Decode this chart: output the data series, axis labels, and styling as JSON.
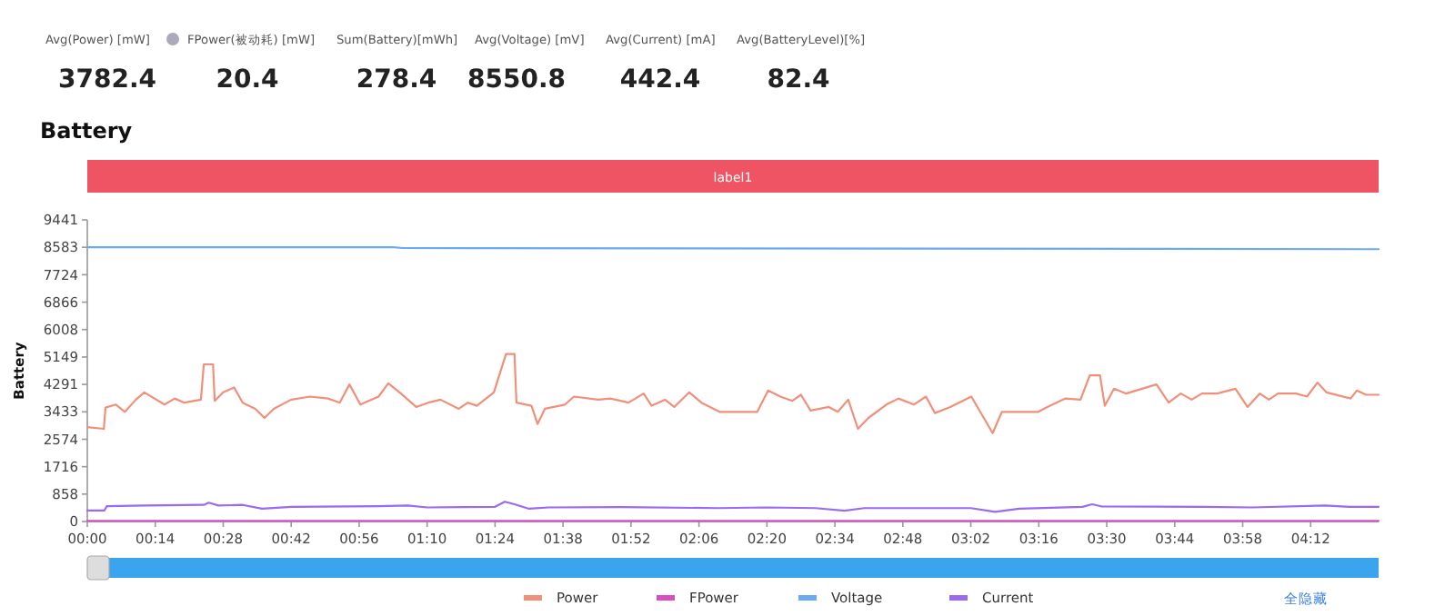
{
  "chart_data": [
    {
      "type": "other",
      "categories": [
        "Avg(Power) [mW]",
        "FPower(被动耗) [mW]",
        "Sum(Battery)[mWh]",
        "Avg(Voltage) [mV]",
        "Avg(Current) [mA]",
        "Avg(BatteryLevel)[%]"
      ],
      "values": [
        3782.4,
        20.4,
        278.4,
        8550.8,
        442.4,
        82.4
      ],
      "data_labels": true
    },
    {
      "type": "line",
      "title": "Battery",
      "ylabel": "Battery",
      "xlim": [
        0,
        266
      ],
      "ylim": [
        0,
        9441
      ],
      "xticks": [
        {
          "value": 0,
          "label": "00:00"
        },
        {
          "value": 14,
          "label": "00:14"
        },
        {
          "value": 28,
          "label": "00:28"
        },
        {
          "value": 42,
          "label": "00:42"
        },
        {
          "value": 56,
          "label": "00:56"
        },
        {
          "value": 70,
          "label": "01:10"
        },
        {
          "value": 84,
          "label": "01:24"
        },
        {
          "value": 98,
          "label": "01:38"
        },
        {
          "value": 112,
          "label": "01:52"
        },
        {
          "value": 126,
          "label": "02:06"
        },
        {
          "value": 140,
          "label": "02:20"
        },
        {
          "value": 154,
          "label": "02:34"
        },
        {
          "value": 168,
          "label": "02:48"
        },
        {
          "value": 182,
          "label": "03:02"
        },
        {
          "value": 196,
          "label": "03:16"
        },
        {
          "value": 210,
          "label": "03:30"
        },
        {
          "value": 224,
          "label": "03:44"
        },
        {
          "value": 238,
          "label": "03:58"
        },
        {
          "value": 252,
          "label": "04:12"
        }
      ],
      "yticks": [
        0,
        858,
        1716,
        2574,
        3433,
        4291,
        5149,
        6008,
        6866,
        7724,
        8583,
        9441
      ],
      "legend": "bottom",
      "annotations": [
        "label1",
        "全隐藏"
      ],
      "series": [
        {
          "name": "Power",
          "color": "#f0907a",
          "x": [
            0,
            3.4,
            3.75,
            5.9,
            7.75,
            10,
            11.75,
            15.9,
            18,
            20,
            23.4,
            24,
            25.9,
            26.25,
            28,
            30.25,
            32,
            34.6,
            36.5,
            38.4,
            42,
            45.9,
            49.6,
            52,
            54,
            56.25,
            60,
            62,
            64.6,
            67.75,
            70.25,
            72.75,
            76.5,
            78.4,
            80.25,
            83.75,
            86.25,
            88,
            88.4,
            91.5,
            92.75,
            94.25,
            98.4,
            100.25,
            105.25,
            107.75,
            111.5,
            114.6,
            116.25,
            119,
            120.9,
            124,
            126.5,
            130.25,
            138,
            140.25,
            142.75,
            145.25,
            147,
            149,
            152.75,
            154.6,
            156.75,
            158.75,
            160.9,
            164.6,
            167.1,
            170.25,
            172.75,
            174.6,
            177.75,
            182.1,
            186.5,
            188.4,
            195.9,
            197.75,
            201.5,
            204.6,
            206.5,
            208.6,
            209.6,
            211.5,
            214,
            220.25,
            222.75,
            225.25,
            227.5,
            229.6,
            232.75,
            236.5,
            239,
            241.5,
            243.4,
            245.25,
            249,
            251.25,
            253.4,
            255.25,
            260.25,
            261.5,
            263.4,
            266
          ],
          "values": [
            2956,
            2900,
            3566,
            3660,
            3433,
            3814,
            4043,
            3660,
            3850,
            3720,
            3814,
            4920,
            4920,
            3776,
            4043,
            4195,
            3720,
            3528,
            3242,
            3528,
            3814,
            3910,
            3850,
            3720,
            4290,
            3660,
            3910,
            4328,
            4005,
            3585,
            3720,
            3814,
            3528,
            3720,
            3623,
            4043,
            5244,
            5244,
            3720,
            3623,
            3051,
            3528,
            3660,
            3910,
            3814,
            3850,
            3720,
            4005,
            3623,
            3814,
            3585,
            4043,
            3720,
            3433,
            3433,
            4100,
            3910,
            3776,
            3967,
            3471,
            3585,
            3433,
            3814,
            2900,
            3242,
            3660,
            3850,
            3660,
            3910,
            3395,
            3585,
            3910,
            2765,
            3433,
            3433,
            3585,
            3850,
            3814,
            4577,
            4577,
            3623,
            4157,
            4005,
            4290,
            3720,
            4005,
            3814,
            4005,
            4005,
            4157,
            3585,
            4005,
            3814,
            4005,
            4005,
            3910,
            4348,
            4043,
            3850,
            4100,
            3967,
            3967
          ]
        },
        {
          "name": "FPower",
          "color": "#d44fc0",
          "x": [
            0,
            266
          ],
          "values": [
            20,
            20
          ]
        },
        {
          "name": "Voltage",
          "color": "#6aaaf2",
          "x": [
            0,
            63,
            65,
            266
          ],
          "values": [
            8583,
            8583,
            8560,
            8524
          ]
        },
        {
          "name": "Current",
          "color": "#9a6af0",
          "x": [
            0,
            3.5,
            4,
            12,
            24,
            25,
            27,
            32,
            36,
            42,
            60,
            66,
            70,
            84,
            86,
            88,
            91,
            95,
            110,
            130,
            140,
            150,
            156,
            160,
            182,
            187,
            192,
            205,
            207,
            209,
            230,
            240,
            255,
            260,
            266
          ],
          "values": [
            343,
            343,
            477,
            500,
            520,
            590,
            500,
            520,
            400,
            460,
            480,
            500,
            440,
            460,
            620,
            540,
            400,
            440,
            450,
            420,
            440,
            420,
            340,
            420,
            420,
            300,
            400,
            460,
            540,
            470,
            460,
            440,
            500,
            460,
            460
          ]
        }
      ]
    }
  ]
}
